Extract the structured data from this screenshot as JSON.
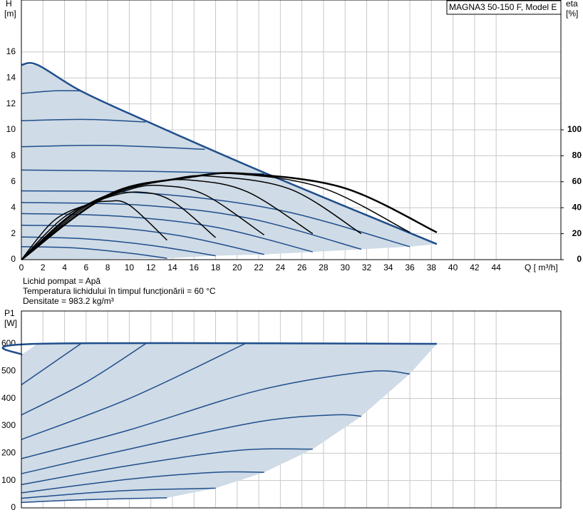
{
  "chart_data": [
    {
      "type": "line",
      "title": "MAGNA3 50-150 F, Model E",
      "ylabel": "H",
      "yunit": "[m]",
      "y2label": "eta",
      "y2unit": "[%]",
      "xlabel": "Q [ m³/h]",
      "annotations": [
        "Lichid pompat = Apă",
        " Temperatura lichidului în timpul funcționării = 60 °C",
        "Densitate = 983.2  kg/m³"
      ],
      "xlim": [
        0,
        50
      ],
      "ylim": [
        0,
        20
      ],
      "y2lim": [
        0,
        200
      ],
      "xticks": [
        0,
        2,
        4,
        6,
        8,
        10,
        12,
        14,
        16,
        18,
        20,
        22,
        24,
        26,
        28,
        30,
        32,
        34,
        36,
        38,
        40,
        42,
        44
      ],
      "yticks": [
        0,
        2,
        4,
        6,
        8,
        10,
        12,
        14,
        16
      ],
      "y2ticks": [
        0,
        20,
        40,
        60,
        80,
        100
      ],
      "grid": true,
      "series": [
        {
          "fill": "#cfdbe6",
          "x": [
            0,
            1.5,
            5.5,
            11.5,
            22.5,
            38.5,
            36,
            31.5,
            27,
            22.5,
            18,
            13.5,
            0
          ],
          "values": [
            15,
            15,
            13,
            10.7,
            6.7,
            1.2,
            1.0,
            0.8,
            0.6,
            0.4,
            0.3,
            0.1,
            0
          ]
        },
        {
          "color": "#1f4e8c",
          "x": [
            0,
            5,
            10,
            13.5
          ],
          "values": [
            1.0,
            0.9,
            0.5,
            0.1
          ]
        },
        {
          "color": "#1f4e8c",
          "x": [
            0,
            6,
            12,
            18
          ],
          "values": [
            1.75,
            1.6,
            1.1,
            0.3
          ]
        },
        {
          "color": "#1f4e8c",
          "x": [
            0,
            8,
            15,
            22.5
          ],
          "values": [
            2.65,
            2.5,
            1.8,
            0.4
          ]
        },
        {
          "color": "#1f4e8c",
          "x": [
            0,
            9,
            18,
            27
          ],
          "values": [
            3.55,
            3.35,
            2.5,
            0.6
          ]
        },
        {
          "color": "#1f4e8c",
          "x": [
            0,
            11,
            21,
            31.5
          ],
          "values": [
            4.4,
            4.2,
            3.2,
            0.8
          ]
        },
        {
          "color": "#1f4e8c",
          "x": [
            0,
            12,
            24,
            36
          ],
          "values": [
            5.3,
            5.1,
            3.8,
            1.0
          ]
        },
        {
          "color": "#1f4e8c",
          "x": [
            0,
            12,
            22.5
          ],
          "values": [
            6.9,
            6.8,
            6.6
          ]
        },
        {
          "color": "#1f4e8c",
          "x": [
            0,
            8,
            17
          ],
          "values": [
            8.7,
            8.8,
            8.5
          ]
        },
        {
          "color": "#1f4e8c",
          "x": [
            0,
            6,
            11.5
          ],
          "values": [
            10.7,
            10.8,
            10.6
          ]
        },
        {
          "color": "#1f4e8c",
          "x": [
            0,
            3,
            5.5
          ],
          "values": [
            12.8,
            13,
            13
          ]
        },
        {
          "color": "#1f4e8c",
          "width": 2.5,
          "x": [
            0,
            1.5,
            5.5,
            11.5,
            22.5,
            38.5
          ],
          "values": [
            15,
            15,
            13,
            10.7,
            6.7,
            1.2
          ]
        },
        {
          "color": "#000000",
          "axis": "y2",
          "x": [
            0,
            3,
            6,
            8,
            10,
            13.5
          ],
          "values": [
            0,
            30,
            42,
            45,
            42,
            15
          ]
        },
        {
          "color": "#000000",
          "axis": "y2",
          "x": [
            0,
            4,
            8,
            11,
            14,
            18
          ],
          "values": [
            0,
            33,
            48,
            52,
            45,
            17
          ]
        },
        {
          "color": "#000000",
          "axis": "y2",
          "x": [
            0,
            5,
            10,
            13,
            17,
            22.5
          ],
          "values": [
            0,
            37,
            54,
            57,
            50,
            19
          ]
        },
        {
          "color": "#000000",
          "axis": "y2",
          "x": [
            0,
            6,
            12,
            16,
            21,
            27
          ],
          "values": [
            0,
            42,
            59,
            61,
            52,
            20
          ]
        },
        {
          "color": "#000000",
          "axis": "y2",
          "x": [
            0,
            7,
            14,
            18,
            25,
            31.5
          ],
          "values": [
            0,
            46,
            62,
            64,
            54,
            20
          ]
        },
        {
          "color": "#000000",
          "axis": "y2",
          "x": [
            0,
            8,
            15,
            20,
            28,
            36
          ],
          "values": [
            0,
            50,
            63,
            66,
            55,
            21
          ]
        },
        {
          "color": "#000000",
          "axis": "y2",
          "width": 2.5,
          "x": [
            0,
            8,
            16,
            21,
            30,
            38.5
          ],
          "values": [
            0,
            49,
            64,
            66,
            55,
            21
          ]
        }
      ]
    },
    {
      "type": "line",
      "ylabel": "P1",
      "yunit": "[W]",
      "xlim": [
        0,
        50
      ],
      "ylim": [
        0,
        720
      ],
      "yticks": [
        0,
        100,
        200,
        300,
        400,
        500,
        600
      ],
      "grid": true,
      "series": [
        {
          "fill": "#cfdbe6",
          "x": [
            0,
            1.5,
            38.5,
            36,
            31.5,
            27,
            22.5,
            18,
            13.5,
            6,
            0
          ],
          "values": [
            560,
            600,
            600,
            490,
            335,
            215,
            130,
            72,
            37,
            30,
            20
          ]
        },
        {
          "color": "#1f4e8c",
          "x": [
            0,
            6,
            13.5
          ],
          "values": [
            20,
            30,
            37
          ]
        },
        {
          "color": "#1f4e8c",
          "x": [
            0,
            9,
            18
          ],
          "values": [
            35,
            62,
            72
          ]
        },
        {
          "color": "#1f4e8c",
          "x": [
            0,
            10,
            18,
            22.5
          ],
          "values": [
            55,
            105,
            130,
            130
          ]
        },
        {
          "color": "#1f4e8c",
          "x": [
            0,
            10,
            20,
            27
          ],
          "values": [
            85,
            155,
            210,
            215
          ]
        },
        {
          "color": "#1f4e8c",
          "x": [
            0,
            10,
            22,
            29,
            31.5
          ],
          "values": [
            125,
            215,
            315,
            340,
            335
          ]
        },
        {
          "color": "#1f4e8c",
          "x": [
            0,
            10,
            22,
            32,
            36
          ],
          "values": [
            180,
            285,
            430,
            498,
            490
          ]
        },
        {
          "color": "#1f4e8c",
          "x": [
            0,
            10,
            20.7
          ],
          "values": [
            250,
            400,
            600
          ]
        },
        {
          "color": "#1f4e8c",
          "x": [
            0,
            6,
            11.5
          ],
          "values": [
            340,
            460,
            600
          ]
        },
        {
          "color": "#1f4e8c",
          "x": [
            0,
            5.5
          ],
          "values": [
            450,
            600
          ]
        },
        {
          "color": "#1f4e8c",
          "width": 2.5,
          "x": [
            0,
            1.5,
            38.5
          ],
          "values": [
            560,
            600,
            600
          ]
        }
      ]
    }
  ]
}
